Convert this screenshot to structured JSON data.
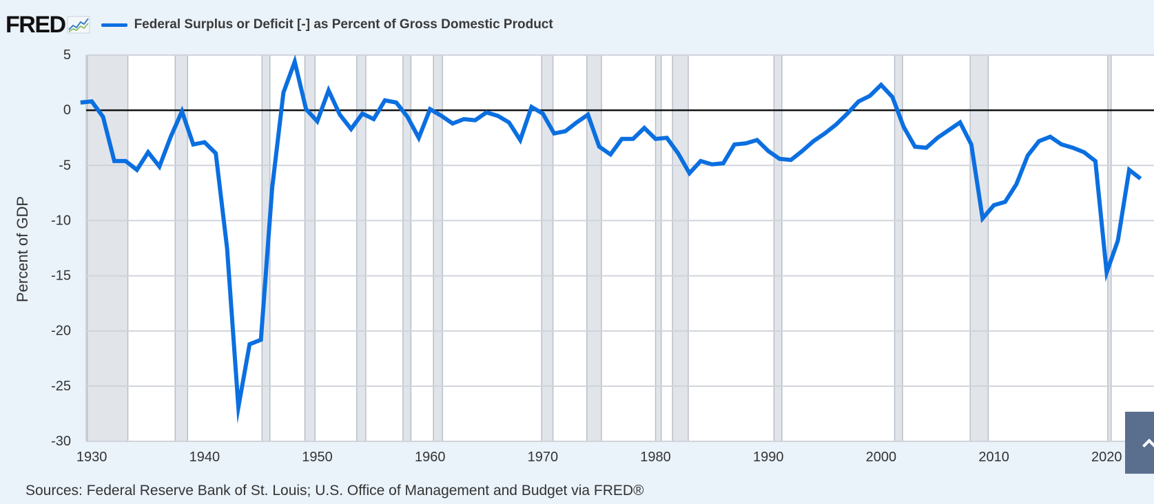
{
  "header": {
    "logo_text": "FRED",
    "logo_icon": "chart-line-icon",
    "legend_label": "Federal Surplus or Deficit [-] as Percent of Gross Domestic Product",
    "legend_color": "#0b6fe0"
  },
  "footer": {
    "source": "Sources: Federal Reserve Bank of St. Louis; U.S. Office of Management and Budget via FRED®"
  },
  "chart_data": {
    "type": "line",
    "title": "",
    "xlabel": "",
    "ylabel": "Percent of GDP",
    "xlim": [
      1929,
      2023
    ],
    "ylim": [
      -30,
      5
    ],
    "x_ticks": [
      1930,
      1940,
      1950,
      1960,
      1970,
      1980,
      1990,
      2000,
      2010,
      2020
    ],
    "x_tick_labels": [
      "1930",
      "1940",
      "1950",
      "1960",
      "1970",
      "1980",
      "1990",
      "2000",
      "2010",
      "2020"
    ],
    "y_ticks": [
      5,
      0,
      -5,
      -10,
      -15,
      -20,
      -25,
      -30
    ],
    "y_tick_labels": [
      "5",
      "0",
      "-5",
      "-10",
      "-15",
      "-20",
      "-25",
      "-30"
    ],
    "grid": true,
    "zero_line": true,
    "series_color": "#0b6fe0",
    "recession_color": "#e1e5ea",
    "recessions": [
      [
        1929.6,
        1933.2
      ],
      [
        1937.4,
        1938.5
      ],
      [
        1945.1,
        1945.8
      ],
      [
        1948.9,
        1949.8
      ],
      [
        1953.5,
        1954.3
      ],
      [
        1957.6,
        1958.3
      ],
      [
        1960.3,
        1961.1
      ],
      [
        1969.9,
        1970.9
      ],
      [
        1973.9,
        1975.2
      ],
      [
        1980.0,
        1980.5
      ],
      [
        1981.5,
        1982.9
      ],
      [
        1990.5,
        1991.2
      ],
      [
        2001.2,
        2001.9
      ],
      [
        2007.9,
        2009.5
      ],
      [
        2020.1,
        2020.4
      ]
    ],
    "series": [
      {
        "x": [
          1929,
          1930,
          1931,
          1932,
          1933,
          1934,
          1935,
          1936,
          1937,
          1938,
          1939,
          1940,
          1941,
          1942,
          1943,
          1944,
          1945,
          1946,
          1947,
          1948,
          1949,
          1950,
          1951,
          1952,
          1953,
          1954,
          1955,
          1956,
          1957,
          1958,
          1959,
          1960,
          1961,
          1962,
          1963,
          1964,
          1965,
          1966,
          1967,
          1968,
          1969,
          1970,
          1971,
          1972,
          1973,
          1974,
          1975,
          1976,
          1977,
          1978,
          1979,
          1980,
          1981,
          1982,
          1983,
          1984,
          1985,
          1986,
          1987,
          1988,
          1989,
          1990,
          1991,
          1992,
          1993,
          1994,
          1995,
          1996,
          1997,
          1998,
          1999,
          2000,
          2001,
          2002,
          2003,
          2004,
          2005,
          2006,
          2007,
          2008,
          2009,
          2010,
          2011,
          2012,
          2013,
          2014,
          2015,
          2016,
          2017,
          2018,
          2019,
          2020,
          2021,
          2022,
          2023
        ],
        "values": [
          0.7,
          0.8,
          -0.6,
          -4.6,
          -4.6,
          -5.4,
          -3.8,
          -5.1,
          -2.4,
          -0.1,
          -3.1,
          -2.9,
          -3.9,
          -12.5,
          -26.9,
          -21.2,
          -20.8,
          -7.0,
          1.6,
          4.4,
          0.1,
          -1.0,
          1.8,
          -0.4,
          -1.7,
          -0.3,
          -0.8,
          0.9,
          0.7,
          -0.6,
          -2.5,
          0.1,
          -0.5,
          -1.2,
          -0.8,
          -0.9,
          -0.2,
          -0.5,
          -1.1,
          -2.7,
          0.3,
          -0.3,
          -2.1,
          -1.9,
          -1.1,
          -0.4,
          -3.3,
          -4.0,
          -2.6,
          -2.6,
          -1.6,
          -2.6,
          -2.5,
          -3.9,
          -5.7,
          -4.6,
          -4.9,
          -4.8,
          -3.1,
          -3.0,
          -2.7,
          -3.7,
          -4.4,
          -4.5,
          -3.7,
          -2.8,
          -2.1,
          -1.3,
          -0.3,
          0.8,
          1.3,
          2.3,
          1.2,
          -1.5,
          -3.3,
          -3.4,
          -2.5,
          -1.8,
          -1.1,
          -3.1,
          -9.8,
          -8.6,
          -8.3,
          -6.7,
          -4.1,
          -2.8,
          -2.4,
          -3.1,
          -3.4,
          -3.8,
          -4.6,
          -14.7,
          -11.8,
          -5.4,
          -6.2
        ]
      }
    ]
  }
}
